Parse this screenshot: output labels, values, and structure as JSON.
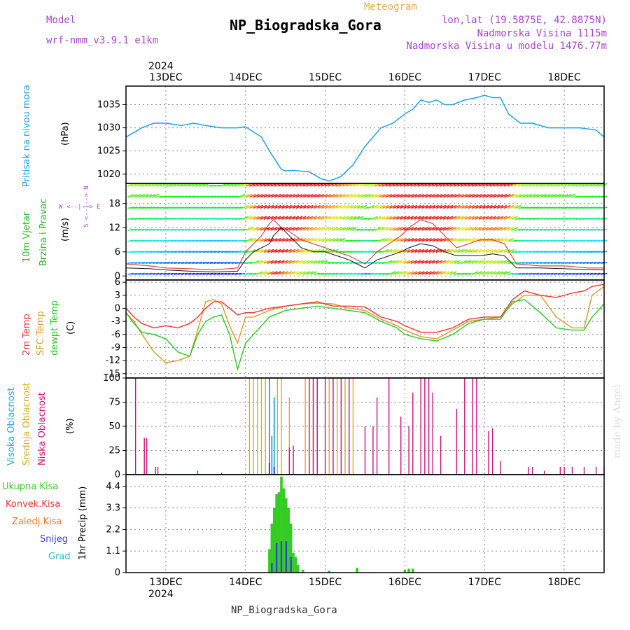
{
  "header": {
    "model_label": "Model",
    "model_name": "wrf-nmm_v3.9.1 e1km",
    "meteogram_label": "Meteogram",
    "station_title": "NP_Biogradska_Gora",
    "lonlat": "lon,lat (19.5875E, 42.8875N)",
    "elevation": "Nadmorska Visina 1115m",
    "model_elevation": "Nadmorska Visina u modelu 1476.77m",
    "footer_station": "NP_Biogradska_Gora",
    "watermark": "made by Angel",
    "year_top": "2024",
    "year_bottom": "2024"
  },
  "colors": {
    "pressure": "#1aa3e8",
    "t2m": "#ee3333",
    "sfc": "#dd9922",
    "dew": "#22cc22",
    "cloud_high": "#22aadd",
    "cloud_mid": "#ddaa22",
    "cloud_low": "#cc1177",
    "precip_total": "#33cc22",
    "precip_conv": "#ee3333",
    "precip_frz": "#ee7722",
    "precip_snow": "#3344cc",
    "precip_grad": "#22bbbb",
    "wind_label": "#22bb22",
    "wind_dir": "#bb44dd",
    "header_purple": "#aa44cc",
    "header_orange": "#e0b050"
  },
  "panels": {
    "pressure": {
      "label_main": "Pritisak na nivou mora",
      "unit": "(hPa)"
    },
    "wind": {
      "label1": "10m Vjetar",
      "label2": "Brzina i Pravac",
      "unit": "(m/s)",
      "dir_label": "W <--|--> E",
      "dir_label2": "S <--|--> N"
    },
    "temp": {
      "label1": "2m Temp",
      "label2": "SFC Temp",
      "label3": "dewpt Temp",
      "unit": "(C)"
    },
    "cloud": {
      "label1": "Visoka Oblacnost",
      "label2": "Srednja Oblacnost",
      "label3": "Niska Oblacnost",
      "unit": "(%)"
    },
    "precip": {
      "legend": [
        "Ukupna Kisa",
        "Konvek.Kisa",
        "Zaledj.Kisa",
        "Snijeg",
        "Grad"
      ],
      "unit": "1hr Precip (mm)"
    }
  },
  "chart_data": {
    "type": "line",
    "x_dates": [
      "13DEC",
      "14DEC",
      "15DEC",
      "16DEC",
      "17DEC",
      "18DEC"
    ],
    "x_range_days": [
      12.5,
      18.5
    ],
    "pressure": {
      "ylabel": "(hPa)",
      "yticks": [
        1020,
        1025,
        1030,
        1035
      ],
      "ylim": [
        1018,
        1039
      ],
      "x": [
        12.5,
        12.6,
        12.7,
        12.85,
        13.0,
        13.2,
        13.35,
        13.5,
        13.7,
        13.9,
        14.0,
        14.2,
        14.3,
        14.45,
        14.5,
        14.6,
        14.8,
        14.95,
        15.05,
        15.2,
        15.35,
        15.5,
        15.7,
        15.85,
        16.0,
        16.1,
        16.2,
        16.3,
        16.4,
        16.5,
        16.6,
        16.75,
        16.9,
        17.0,
        17.1,
        17.2,
        17.3,
        17.45,
        17.6,
        17.8,
        18.0,
        18.2,
        18.4,
        18.5
      ],
      "values": [
        1028,
        1029,
        1030,
        1031,
        1031,
        1030.5,
        1031,
        1030.5,
        1030,
        1030,
        1030.2,
        1028,
        1025,
        1021,
        1020.7,
        1020.8,
        1020.5,
        1019,
        1018.5,
        1019.5,
        1022,
        1026,
        1030,
        1031,
        1033,
        1034,
        1036,
        1035.5,
        1036,
        1035,
        1035,
        1036,
        1036.5,
        1037,
        1036.5,
        1036.5,
        1033,
        1031,
        1031,
        1030,
        1030,
        1030,
        1029.5,
        1028
      ]
    },
    "wind": {
      "ylabel": "(m/s)",
      "yticks": [
        0,
        6,
        12,
        18
      ],
      "ylim": [
        -1,
        23
      ],
      "x": [
        12.5,
        12.8,
        13.0,
        13.3,
        13.6,
        13.9,
        14.0,
        14.1,
        14.2,
        14.3,
        14.35,
        14.45,
        14.55,
        14.7,
        14.85,
        15.0,
        15.15,
        15.3,
        15.4,
        15.5,
        15.65,
        15.8,
        15.95,
        16.05,
        16.2,
        16.35,
        16.5,
        16.65,
        16.8,
        16.95,
        17.1,
        17.25,
        17.4,
        17.7,
        18.0,
        18.3,
        18.5
      ],
      "speed": [
        2,
        1.8,
        1.5,
        1.2,
        1.0,
        1.2,
        4,
        6,
        7,
        8,
        10,
        12,
        10,
        7,
        6,
        6,
        5,
        4,
        3,
        2,
        4,
        5,
        6,
        7,
        8,
        7.5,
        6,
        5,
        5,
        5,
        5.5,
        5,
        2,
        2,
        1.8,
        1.6,
        1.5
      ],
      "gust": [
        3,
        2.5,
        2,
        1.8,
        1.5,
        2,
        6,
        8,
        10,
        13,
        14,
        12,
        11,
        9,
        8,
        7,
        6,
        5,
        4,
        3,
        6,
        8,
        10,
        12,
        14,
        13,
        10,
        7,
        8,
        9,
        9,
        8,
        3,
        2.5,
        2.5,
        2,
        2
      ]
    },
    "temperature": {
      "ylabel": "(C)",
      "yticks": [
        -15,
        -12,
        -9,
        -6,
        -3,
        0,
        3,
        6
      ],
      "ylim": [
        -16,
        6.5
      ],
      "x": [
        12.5,
        12.6,
        12.7,
        12.85,
        13.0,
        13.15,
        13.3,
        13.4,
        13.5,
        13.6,
        13.7,
        13.8,
        13.9,
        14.0,
        14.1,
        14.3,
        14.5,
        14.7,
        14.9,
        15.1,
        15.3,
        15.5,
        15.7,
        15.9,
        16.0,
        16.2,
        16.4,
        16.6,
        16.8,
        17.0,
        17.2,
        17.35,
        17.5,
        17.7,
        17.9,
        18.1,
        18.25,
        18.35,
        18.5
      ],
      "t2m": [
        0,
        -2,
        -3.5,
        -4.5,
        -4,
        -4.5,
        -3.5,
        -2,
        0,
        1.5,
        1.5,
        0,
        -1.5,
        -1,
        -1,
        0,
        0.5,
        1,
        1.5,
        0.5,
        0.5,
        0.3,
        -2,
        -3,
        -4,
        -5.5,
        -5.5,
        -4.5,
        -2.5,
        -2,
        -2,
        2,
        4,
        3,
        2.5,
        3.5,
        4,
        5,
        5.5
      ],
      "sfc": [
        -1,
        -3,
        -6,
        -10,
        -12.5,
        -12,
        -11,
        -5,
        1.5,
        2,
        1,
        -4,
        -8,
        -2,
        -2,
        -0.5,
        0.5,
        1,
        1.2,
        1,
        0,
        -0.5,
        -2.5,
        -4,
        -5,
        -6.5,
        -7,
        -5,
        -3,
        -2.5,
        -2,
        1,
        3,
        3,
        -2,
        -4.5,
        -4.5,
        3,
        5
      ],
      "dew": [
        -1,
        -3.5,
        -5.5,
        -6,
        -7,
        -10,
        -11,
        -6,
        -3,
        -2,
        -1.5,
        -6,
        -14,
        -8,
        -6,
        -2,
        -0.5,
        0,
        0.5,
        0,
        -0.5,
        -1,
        -3,
        -4.5,
        -6,
        -7,
        -7.5,
        -6,
        -3.5,
        -2.5,
        -2.5,
        1.5,
        2,
        -1,
        -4.5,
        -5,
        -5,
        -2,
        1
      ]
    },
    "clouds": {
      "ylabel": "(%)",
      "yticks": [
        0,
        25,
        50,
        75,
        100
      ],
      "ylim": [
        0,
        100
      ],
      "low": [
        [
          12.62,
          100
        ],
        [
          12.73,
          38
        ],
        [
          12.76,
          38
        ],
        [
          12.87,
          8
        ],
        [
          12.9,
          8
        ],
        [
          13.4,
          4
        ],
        [
          13.7,
          2
        ],
        [
          14.3,
          100
        ],
        [
          14.55,
          28
        ],
        [
          14.6,
          30
        ],
        [
          14.8,
          100
        ],
        [
          14.85,
          100
        ],
        [
          14.9,
          100
        ],
        [
          15.0,
          100
        ],
        [
          15.1,
          100
        ],
        [
          15.2,
          100
        ],
        [
          15.3,
          100
        ],
        [
          15.5,
          50
        ],
        [
          15.6,
          50
        ],
        [
          15.65,
          80
        ],
        [
          15.8,
          100
        ],
        [
          15.95,
          60
        ],
        [
          16.05,
          50
        ],
        [
          16.1,
          85
        ],
        [
          16.2,
          100
        ],
        [
          16.25,
          100
        ],
        [
          16.3,
          100
        ],
        [
          16.35,
          85
        ],
        [
          16.45,
          40
        ],
        [
          16.65,
          68
        ],
        [
          16.75,
          100
        ],
        [
          16.85,
          100
        ],
        [
          16.9,
          100
        ],
        [
          17.05,
          45
        ],
        [
          17.1,
          48
        ],
        [
          17.2,
          14
        ],
        [
          17.55,
          8
        ],
        [
          17.6,
          8
        ],
        [
          17.75,
          4
        ],
        [
          17.95,
          8
        ],
        [
          18.0,
          8
        ],
        [
          18.1,
          8
        ],
        [
          18.25,
          8
        ],
        [
          18.4,
          8
        ],
        [
          18.5,
          8
        ]
      ],
      "mid": [
        [
          14.05,
          100
        ],
        [
          14.1,
          100
        ],
        [
          14.15,
          100
        ],
        [
          14.2,
          100
        ],
        [
          14.25,
          100
        ],
        [
          14.4,
          100
        ],
        [
          14.45,
          100
        ],
        [
          14.55,
          80
        ],
        [
          14.75,
          100
        ],
        [
          14.8,
          100
        ],
        [
          14.85,
          100
        ],
        [
          14.9,
          100
        ],
        [
          15.05,
          100
        ],
        [
          15.15,
          100
        ],
        [
          15.25,
          100
        ],
        [
          15.35,
          100
        ]
      ],
      "high": [
        [
          14.3,
          95
        ],
        [
          14.33,
          40
        ],
        [
          14.36,
          80
        ]
      ],
      "snow_marks": [
        [
          14.3,
          12
        ],
        [
          14.36,
          8
        ]
      ]
    },
    "precip": {
      "ylabel": "1hr Precip (mm)",
      "yticks": [
        0,
        1.1,
        2.2,
        3.3,
        4.4
      ],
      "ylim": [
        0,
        5.0
      ],
      "total": [
        [
          14.3,
          1.2
        ],
        [
          14.33,
          2.5
        ],
        [
          14.36,
          3.3
        ],
        [
          14.39,
          4.0
        ],
        [
          14.42,
          4.1
        ],
        [
          14.45,
          4.9
        ],
        [
          14.48,
          4.3
        ],
        [
          14.51,
          3.8
        ],
        [
          14.54,
          3.3
        ],
        [
          14.57,
          2.5
        ],
        [
          14.6,
          1.0
        ],
        [
          14.63,
          0.8
        ],
        [
          14.66,
          0.4
        ],
        [
          14.72,
          0.15
        ],
        [
          15.05,
          0.1
        ],
        [
          15.4,
          0.25
        ],
        [
          16.0,
          0.15
        ],
        [
          16.05,
          0.2
        ],
        [
          16.1,
          0.2
        ]
      ],
      "snow": [
        [
          14.33,
          0.5
        ],
        [
          14.39,
          1.5
        ],
        [
          14.45,
          1.6
        ],
        [
          14.51,
          1.6
        ],
        [
          14.57,
          0.8
        ]
      ]
    }
  }
}
